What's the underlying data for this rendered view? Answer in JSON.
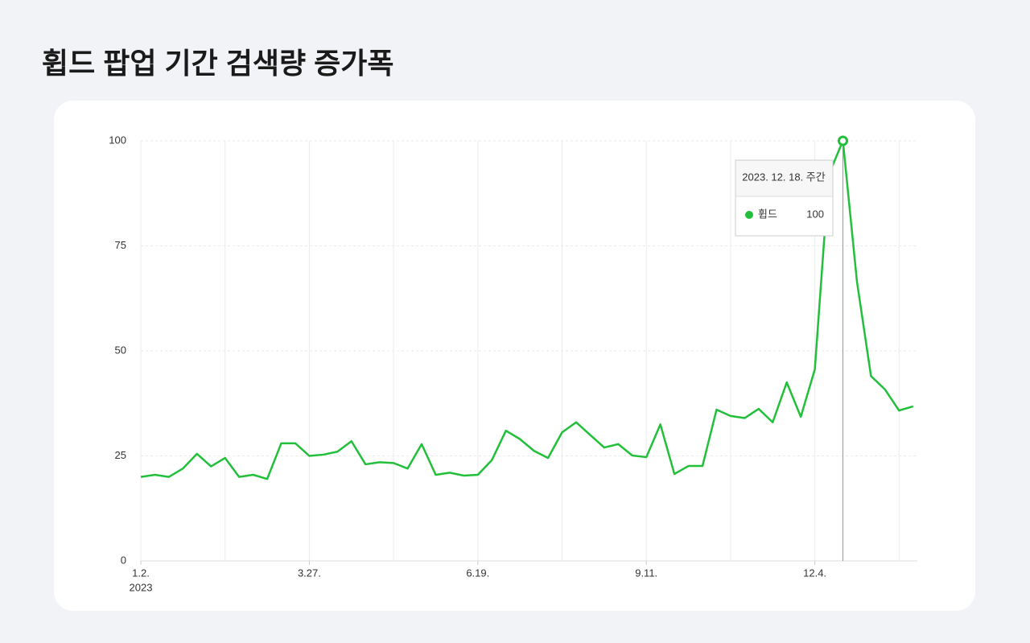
{
  "chart_data": {
    "type": "line",
    "title": "휩드 팝업 기간 검색량 증가폭",
    "categories": [
      "1.2.",
      null,
      null,
      null,
      null,
      null,
      null,
      null,
      null,
      null,
      null,
      null,
      "3.27.",
      null,
      null,
      null,
      null,
      null,
      null,
      null,
      null,
      null,
      null,
      null,
      "6.19.",
      null,
      null,
      null,
      null,
      null,
      null,
      null,
      null,
      null,
      null,
      null,
      "9.11.",
      null,
      null,
      null,
      null,
      null,
      null,
      null,
      null,
      null,
      null,
      null,
      "12.4.",
      null,
      null,
      null,
      null,
      null,
      null,
      null
    ],
    "year_label": "2023",
    "series": [
      {
        "name": "휩드",
        "color": "#22c03a",
        "values": [
          20,
          20.5,
          20,
          22,
          25.5,
          22.5,
          24.5,
          20,
          20.5,
          19.5,
          28,
          28,
          25,
          25.3,
          26,
          28.5,
          23,
          23.5,
          23.3,
          22,
          27.8,
          20.5,
          21,
          20.3,
          20.5,
          24,
          31,
          29,
          26.2,
          24.5,
          30.6,
          33,
          30,
          27,
          27.8,
          25.1,
          24.7,
          32.5,
          20.7,
          22.6,
          22.6,
          36,
          34.5,
          34,
          36.2,
          33,
          42.5,
          34.3,
          45.6,
          92,
          100,
          66.5,
          44,
          40.8,
          35.8,
          36.8
        ]
      }
    ],
    "ylim": [
      0,
      100
    ],
    "yticks": [
      0,
      25,
      50,
      75,
      100
    ],
    "grid": true,
    "tooltip_title": "2023. 12. 18. 주간"
  }
}
